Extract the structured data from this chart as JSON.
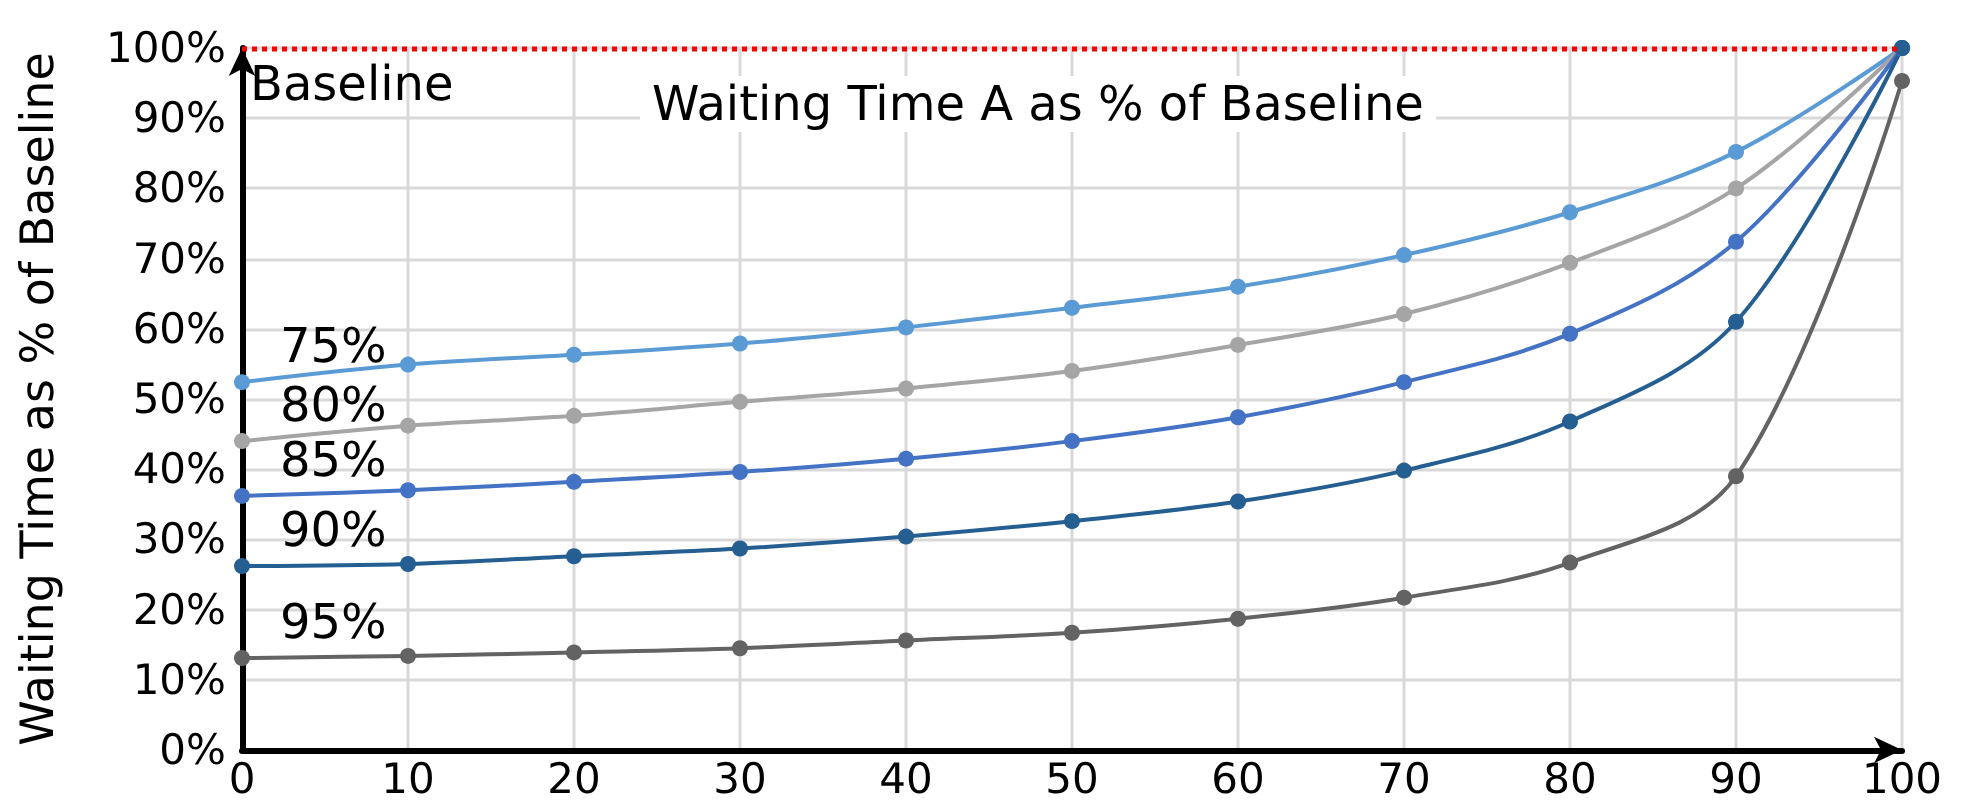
{
  "chart_data": {
    "type": "line",
    "title": "Waiting Time A as % of Baseline",
    "ylabel": "Waiting Time as % of Baseline",
    "x": [
      0,
      10,
      20,
      30,
      40,
      50,
      60,
      70,
      80,
      90,
      100
    ],
    "xlim": [
      0,
      100
    ],
    "xticks": [
      0,
      10,
      20,
      30,
      40,
      50,
      60,
      70,
      80,
      90,
      100
    ],
    "ylim": [
      0,
      100
    ],
    "yticks": [
      {
        "value": 0,
        "label": "0%"
      },
      {
        "value": 10,
        "label": "10%"
      },
      {
        "value": 20,
        "label": "20%"
      },
      {
        "value": 30,
        "label": "30%"
      },
      {
        "value": 40,
        "label": "40%"
      },
      {
        "value": 50,
        "label": "50%"
      },
      {
        "value": 60,
        "label": "60%"
      },
      {
        "value": 70,
        "label": "70%"
      },
      {
        "value": 80,
        "label": "80%"
      },
      {
        "value": 90,
        "label": "90%"
      },
      {
        "value": 100,
        "label": "100%"
      }
    ],
    "grid": true,
    "marker": "circle",
    "line_style": "solid",
    "ref_lines": [
      {
        "axis": "y",
        "value": 100,
        "label": "Baseline",
        "color": "#ff0000",
        "line_style": "dotted"
      }
    ],
    "series": [
      {
        "name": "75%",
        "color": "#5b9bd5",
        "values": [
          52.4,
          54.9,
          56.3,
          57.9,
          60.2,
          63,
          66,
          70.5,
          76.6,
          85.2,
          100
        ]
      },
      {
        "name": "80%",
        "color": "#a5a5a5",
        "values": [
          44,
          46.2,
          47.6,
          49.6,
          51.5,
          54,
          57.7,
          62.1,
          69.4,
          80,
          100
        ]
      },
      {
        "name": "85%",
        "color": "#4472c4",
        "values": [
          36.2,
          37,
          38.2,
          39.6,
          41.5,
          44,
          47.4,
          52.4,
          59.3,
          72.4,
          100
        ]
      },
      {
        "name": "90%",
        "color": "#255e91",
        "values": [
          26.2,
          26.5,
          27.6,
          28.7,
          30.4,
          32.6,
          35.4,
          39.8,
          46.8,
          61,
          100
        ]
      },
      {
        "name": "95%",
        "color": "#636363",
        "values": [
          13.1,
          13.4,
          13.9,
          14.5,
          15.6,
          16.7,
          18.7,
          21.7,
          26.7,
          39,
          95.3
        ]
      }
    ]
  }
}
